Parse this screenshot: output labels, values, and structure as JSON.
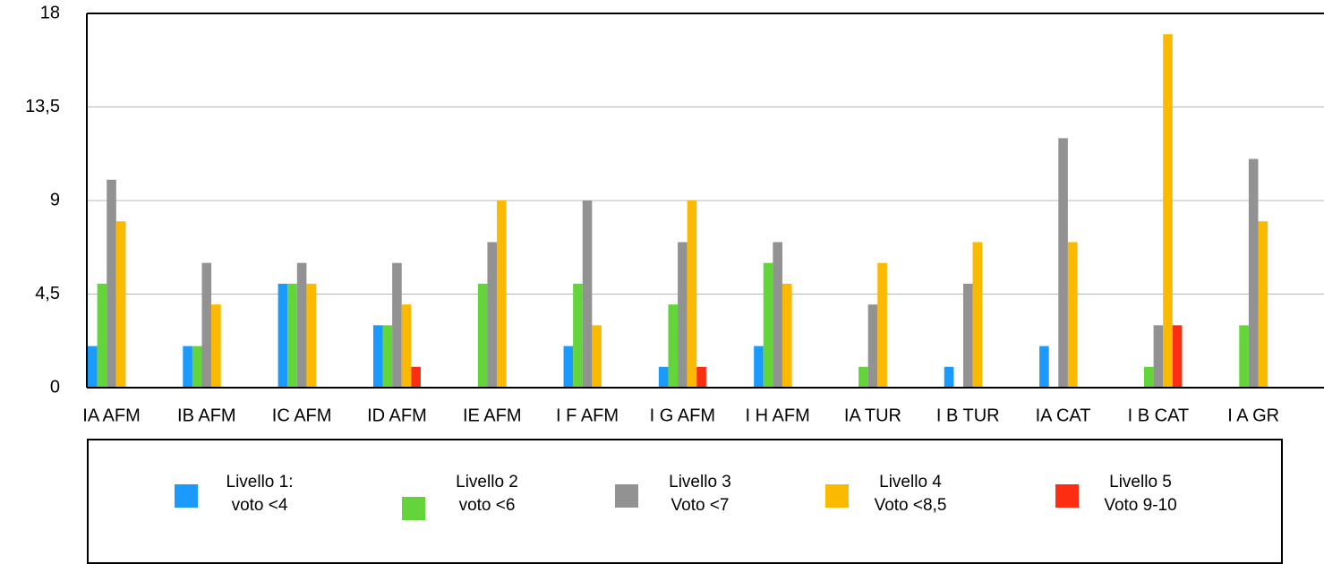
{
  "chart_data": {
    "type": "bar",
    "categories": [
      "IA AFM",
      "IB AFM",
      "IC AFM",
      "ID AFM",
      "IE AFM",
      "I F AFM",
      "I G AFM",
      "I H AFM",
      "IA TUR",
      "I B TUR",
      "IA CAT",
      "I B CAT",
      "I A GR"
    ],
    "series": [
      {
        "name": "Livello 1: voto <4",
        "color": "#1a9bfc",
        "values": [
          2,
          2,
          5,
          3,
          0,
          2,
          1,
          2,
          0,
          1,
          2,
          0,
          0
        ]
      },
      {
        "name": "Livello 2 voto <6",
        "color": "#63d43a",
        "values": [
          5,
          2,
          5,
          3,
          5,
          5,
          4,
          6,
          1,
          0,
          0,
          1,
          3
        ]
      },
      {
        "name": "Livello 3 Voto <7",
        "color": "#929292",
        "values": [
          10,
          6,
          6,
          6,
          7,
          9,
          7,
          7,
          4,
          5,
          12,
          3,
          11
        ]
      },
      {
        "name": "Livello 4 Voto <8,5",
        "color": "#fbb900",
        "values": [
          8,
          4,
          5,
          4,
          9,
          3,
          9,
          5,
          6,
          7,
          7,
          17,
          8
        ]
      },
      {
        "name": "Livello 5 Voto 9-10",
        "color": "#fc2d10",
        "values": [
          0,
          0,
          0,
          1,
          0,
          0,
          1,
          0,
          0,
          0,
          0,
          3,
          0
        ]
      }
    ],
    "ylim": [
      0,
      18
    ],
    "yticks": [
      0,
      {
        "value": 4.5,
        "label": "4,5"
      },
      9,
      {
        "value": 13.5,
        "label": "13,5"
      },
      18
    ],
    "grid": true
  }
}
